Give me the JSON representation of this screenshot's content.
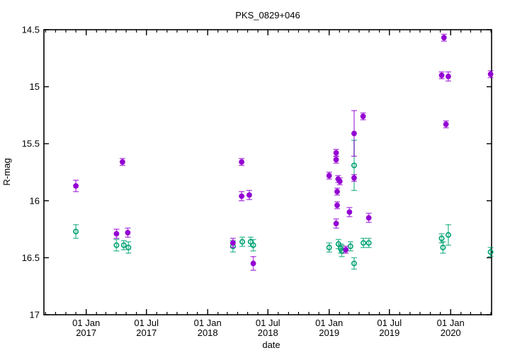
{
  "chart_data": {
    "type": "scatter",
    "title": "PKS_0829+046",
    "xlabel": "date",
    "ylabel": "R-mag",
    "y_axis_inverted_magnitudes": true,
    "y_range": [
      14.5,
      17.0
    ],
    "x_range": [
      "2016-08-27",
      "2020-05-03"
    ],
    "grid": false,
    "legend": "none",
    "y_ticks": [
      {
        "value": 14.5,
        "label": "14.5"
      },
      {
        "value": 15.0,
        "label": "15"
      },
      {
        "value": 15.5,
        "label": "15.5"
      },
      {
        "value": 16.0,
        "label": "16"
      },
      {
        "value": 16.5,
        "label": "16.5"
      },
      {
        "value": 17.0,
        "label": "17"
      }
    ],
    "x_major_ticks": [
      {
        "date": "2017-01-01",
        "line1": "01 Jan",
        "line2": "2017"
      },
      {
        "date": "2017-07-01",
        "line1": "01 Jul",
        "line2": "2017"
      },
      {
        "date": "2018-01-01",
        "line1": "01 Jan",
        "line2": "2018"
      },
      {
        "date": "2018-07-01",
        "line1": "01 Jul",
        "line2": "2018"
      },
      {
        "date": "2019-01-01",
        "line1": "01 Jan",
        "line2": "2019"
      },
      {
        "date": "2019-07-01",
        "line1": "01 Jul",
        "line2": "2019"
      },
      {
        "date": "2020-01-01",
        "line1": "01 Jan",
        "line2": "2020"
      }
    ],
    "x_minor_ticks": "monthly",
    "series": [
      {
        "name": "green-open-circles",
        "marker": "open-circle",
        "color": "#00a273",
        "points": [
          {
            "date": "2016-12-01",
            "mag": 16.27,
            "err": 0.06
          },
          {
            "date": "2017-04-02",
            "mag": 16.39,
            "err": 0.05
          },
          {
            "date": "2017-04-24",
            "mag": 16.39,
            "err": 0.04
          },
          {
            "date": "2017-05-08",
            "mag": 16.41,
            "err": 0.05
          },
          {
            "date": "2018-03-18",
            "mag": 16.4,
            "err": 0.05
          },
          {
            "date": "2018-04-15",
            "mag": 16.36,
            "err": 0.04
          },
          {
            "date": "2018-05-10",
            "mag": 16.36,
            "err": 0.04
          },
          {
            "date": "2018-05-18",
            "mag": 16.39,
            "err": 0.05
          },
          {
            "date": "2019-01-01",
            "mag": 16.41,
            "err": 0.04
          },
          {
            "date": "2019-01-29",
            "mag": 16.38,
            "err": 0.04
          },
          {
            "date": "2019-02-05",
            "mag": 16.42,
            "err": 0.04
          },
          {
            "date": "2019-02-08",
            "mag": 16.44,
            "err": 0.05
          },
          {
            "date": "2019-03-06",
            "mag": 16.4,
            "err": 0.04
          },
          {
            "date": "2019-03-17",
            "mag": 15.69,
            "err": 0.22
          },
          {
            "date": "2019-03-17",
            "mag": 16.55,
            "err": 0.05
          },
          {
            "date": "2019-04-14",
            "mag": 16.37,
            "err": 0.04
          },
          {
            "date": "2019-04-30",
            "mag": 16.37,
            "err": 0.04
          },
          {
            "date": "2019-12-05",
            "mag": 16.33,
            "err": 0.04
          },
          {
            "date": "2019-12-09",
            "mag": 16.41,
            "err": 0.05
          },
          {
            "date": "2019-12-25",
            "mag": 16.3,
            "err": 0.09
          },
          {
            "date": "2020-04-30",
            "mag": 16.45,
            "err": 0.04
          }
        ]
      },
      {
        "name": "purple-filled-circles",
        "marker": "filled-circle",
        "color": "#9400d3",
        "points": [
          {
            "date": "2016-12-01",
            "mag": 15.87,
            "err": 0.05
          },
          {
            "date": "2017-04-02",
            "mag": 16.29,
            "err": 0.04
          },
          {
            "date": "2017-04-20",
            "mag": 15.66,
            "err": 0.03
          },
          {
            "date": "2017-05-06",
            "mag": 16.28,
            "err": 0.04
          },
          {
            "date": "2018-03-18",
            "mag": 16.37,
            "err": 0.04
          },
          {
            "date": "2018-04-13",
            "mag": 15.66,
            "err": 0.03
          },
          {
            "date": "2018-04-13",
            "mag": 15.96,
            "err": 0.04
          },
          {
            "date": "2018-05-06",
            "mag": 15.95,
            "err": 0.04
          },
          {
            "date": "2018-05-18",
            "mag": 16.55,
            "err": 0.06
          },
          {
            "date": "2019-01-01",
            "mag": 15.78,
            "err": 0.03
          },
          {
            "date": "2019-01-22",
            "mag": 15.58,
            "err": 0.03
          },
          {
            "date": "2019-01-22",
            "mag": 15.64,
            "err": 0.03
          },
          {
            "date": "2019-01-22",
            "mag": 16.2,
            "err": 0.04
          },
          {
            "date": "2019-01-25",
            "mag": 15.92,
            "err": 0.03
          },
          {
            "date": "2019-01-25",
            "mag": 16.04,
            "err": 0.03
          },
          {
            "date": "2019-01-28",
            "mag": 15.81,
            "err": 0.03
          },
          {
            "date": "2019-02-02",
            "mag": 15.83,
            "err": 0.03
          },
          {
            "date": "2019-02-20",
            "mag": 16.43,
            "err": 0.03
          },
          {
            "date": "2019-03-03",
            "mag": 16.1,
            "err": 0.04
          },
          {
            "date": "2019-03-17",
            "mag": 15.41,
            "err": 0.2
          },
          {
            "date": "2019-03-17",
            "mag": 15.8,
            "err": 0.03
          },
          {
            "date": "2019-04-13",
            "mag": 15.26,
            "err": 0.03
          },
          {
            "date": "2019-04-30",
            "mag": 16.15,
            "err": 0.04
          },
          {
            "date": "2019-12-05",
            "mag": 14.9,
            "err": 0.03
          },
          {
            "date": "2019-12-12",
            "mag": 14.57,
            "err": 0.03
          },
          {
            "date": "2019-12-18",
            "mag": 15.33,
            "err": 0.03
          },
          {
            "date": "2019-12-25",
            "mag": 14.91,
            "err": 0.04
          },
          {
            "date": "2020-04-30",
            "mag": 14.89,
            "err": 0.03
          }
        ]
      }
    ]
  }
}
